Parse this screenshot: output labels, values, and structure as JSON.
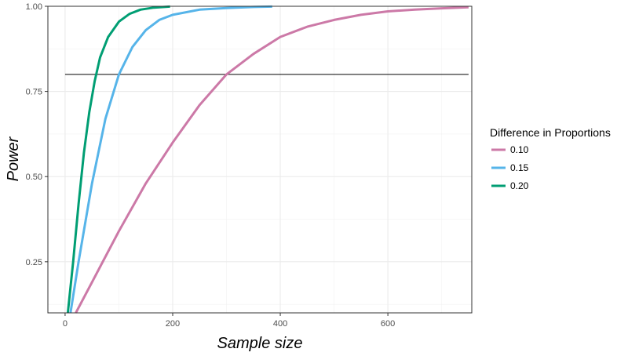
{
  "chart_data": {
    "type": "line",
    "xlabel": "Sample size",
    "ylabel": "Power",
    "xlim": [
      -32,
      756
    ],
    "ylim": [
      0.1,
      1.0
    ],
    "x_ticks": [
      {
        "value": 0,
        "label": "0"
      },
      {
        "value": 200,
        "label": "200"
      },
      {
        "value": 400,
        "label": "400"
      },
      {
        "value": 600,
        "label": "600"
      }
    ],
    "y_ticks": [
      {
        "value": 0.25,
        "label": "0.25"
      },
      {
        "value": 0.5,
        "label": "0.50"
      },
      {
        "value": 0.75,
        "label": "0.75"
      },
      {
        "value": 1.0,
        "label": "1.00"
      }
    ],
    "grid": true,
    "legend": {
      "title": "Difference in Proportions",
      "position": "right",
      "entries": [
        "0.10",
        "0.15",
        "0.20"
      ]
    },
    "reference_line": {
      "y": 0.8,
      "x_start": 0,
      "x_end": 750,
      "color": "#000000"
    },
    "series": [
      {
        "name": "0.10",
        "color": "#CC79A7",
        "x": [
          20,
          50,
          100,
          150,
          200,
          250,
          300,
          350,
          400,
          450,
          500,
          550,
          600,
          650,
          700,
          750
        ],
        "y": [
          0.1,
          0.19,
          0.34,
          0.48,
          0.6,
          0.71,
          0.8,
          0.86,
          0.91,
          0.94,
          0.96,
          0.975,
          0.985,
          0.99,
          0.994,
          0.997
        ]
      },
      {
        "name": "0.15",
        "color": "#56B4E9",
        "x": [
          10,
          25,
          50,
          75,
          100,
          125,
          150,
          175,
          200,
          250,
          300,
          350,
          385
        ],
        "y": [
          0.1,
          0.25,
          0.48,
          0.67,
          0.8,
          0.88,
          0.93,
          0.96,
          0.975,
          0.99,
          0.995,
          0.998,
          0.999
        ]
      },
      {
        "name": "0.20",
        "color": "#009E73",
        "x": [
          5,
          15,
          25,
          35,
          45,
          55,
          65,
          80,
          100,
          120,
          140,
          165,
          195
        ],
        "y": [
          0.1,
          0.25,
          0.42,
          0.57,
          0.69,
          0.78,
          0.85,
          0.91,
          0.955,
          0.978,
          0.99,
          0.996,
          0.999
        ]
      }
    ]
  }
}
